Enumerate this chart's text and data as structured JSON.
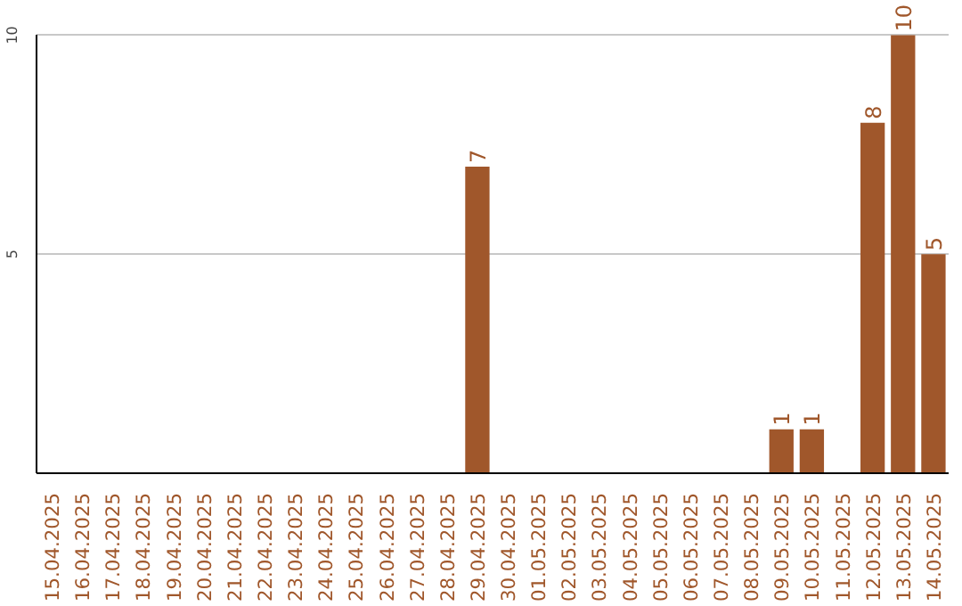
{
  "chart_data": {
    "type": "bar",
    "categories": [
      "15.04.2025",
      "16.04.2025",
      "17.04.2025",
      "18.04.2025",
      "19.04.2025",
      "20.04.2025",
      "21.04.2025",
      "22.04.2025",
      "23.04.2025",
      "24.04.2025",
      "25.04.2025",
      "26.04.2025",
      "27.04.2025",
      "28.04.2025",
      "29.04.2025",
      "30.04.2025",
      "01.05.2025",
      "02.05.2025",
      "03.05.2025",
      "04.05.2025",
      "05.05.2025",
      "06.05.2025",
      "07.05.2025",
      "08.05.2025",
      "09.05.2025",
      "10.05.2025",
      "11.05.2025",
      "12.05.2025",
      "13.05.2025",
      "14.05.2025"
    ],
    "values": [
      0,
      0,
      0,
      0,
      0,
      0,
      0,
      0,
      0,
      0,
      0,
      0,
      0,
      0,
      7,
      0,
      0,
      0,
      0,
      0,
      0,
      0,
      0,
      0,
      1,
      1,
      0,
      8,
      10,
      5
    ],
    "value_labels": [
      null,
      null,
      null,
      null,
      null,
      null,
      null,
      null,
      null,
      null,
      null,
      null,
      null,
      null,
      "7",
      null,
      null,
      null,
      null,
      null,
      null,
      null,
      null,
      null,
      "1",
      "1",
      null,
      "8",
      "10",
      "5"
    ],
    "color": "#a0572b",
    "ylim": [
      0,
      10
    ],
    "yticks": [
      5,
      10
    ],
    "grid": "y"
  }
}
